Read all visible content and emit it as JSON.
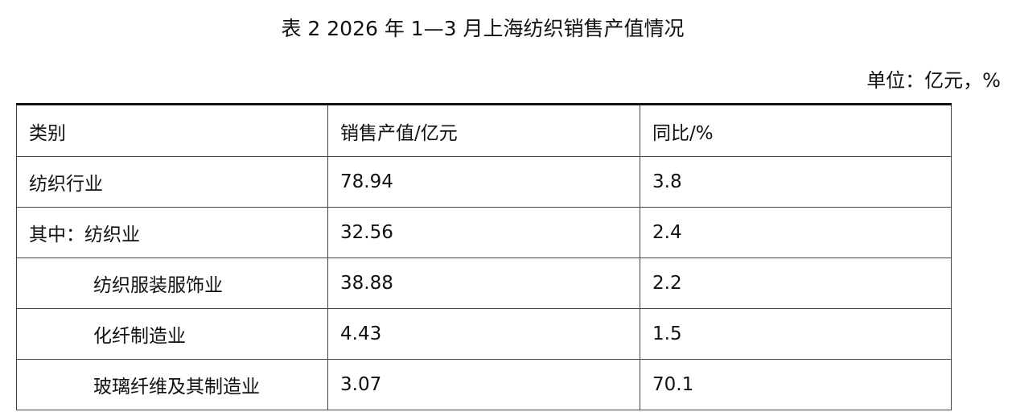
{
  "title": "表 2 2026 年 1—3 月上海纺织销售产值情况",
  "unit": "单位：亿元，%",
  "table": {
    "header": [
      "类别",
      "销售产值/亿元",
      "同比/%"
    ],
    "rows": [
      [
        "纺织行业",
        "78.94",
        "3.8"
      ],
      [
        "其中：纺织业",
        "32.56",
        "2.4"
      ],
      [
        "纺织服装服饰业",
        "38.88",
        "2.2"
      ],
      [
        "化纤制造业",
        "4.43",
        "1.5"
      ],
      [
        "玻璃纤维及其制造业",
        "3.07",
        "70.1"
      ]
    ]
  }
}
